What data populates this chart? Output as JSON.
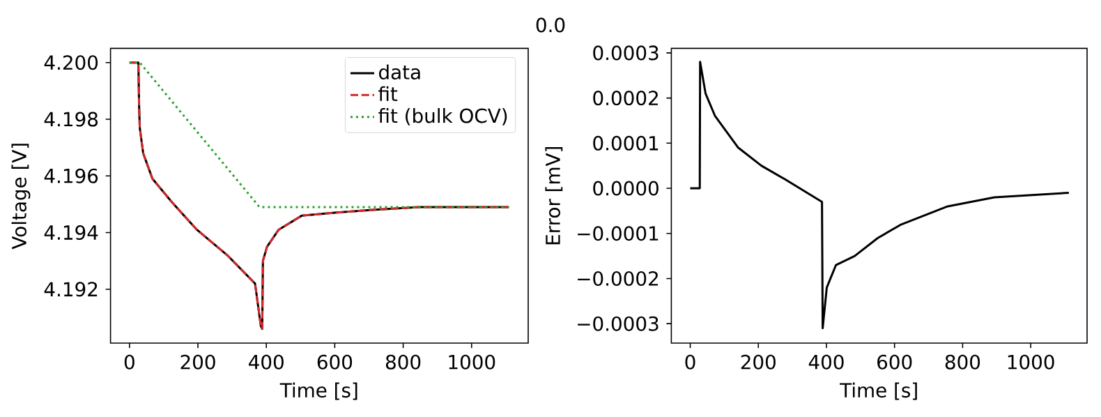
{
  "chart_data": [
    {
      "type": "line",
      "title": "0.0",
      "xlabel": "Time [s]",
      "ylabel": "Voltage [V]",
      "xlim": [
        -55.5,
        1165.5
      ],
      "ylim": [
        4.1901,
        4.2005
      ],
      "xticks": [
        0,
        200,
        400,
        600,
        800,
        1000
      ],
      "yticks": [
        {
          "value": 4.192,
          "label": "4.192"
        },
        {
          "value": 4.194,
          "label": "4.194"
        },
        {
          "value": 4.196,
          "label": "4.196"
        },
        {
          "value": 4.198,
          "label": "4.198"
        },
        {
          "value": 4.2,
          "label": "4.200"
        }
      ],
      "legend": "top right",
      "grid": false,
      "marker": "none",
      "series": [
        {
          "name": "data",
          "color": "#000000",
          "line_style": "solid",
          "x": [
            0,
            26,
            28,
            30,
            40,
            67,
            122,
            197,
            286,
            367,
            384,
            388,
            390,
            402,
            436,
            504,
            600,
            709,
            846,
            1109
          ],
          "values": [
            4.2,
            4.2,
            4.1985,
            4.1977,
            4.1968,
            4.1959,
            4.1951,
            4.1941,
            4.1932,
            4.1922,
            4.1907,
            4.1906,
            4.193,
            4.1935,
            4.1941,
            4.1946,
            4.1947,
            4.1948,
            4.1949,
            4.1949
          ]
        },
        {
          "name": "fit",
          "color": "#d62728",
          "line_style": "dashed",
          "x": [
            0,
            26,
            28,
            30,
            40,
            67,
            122,
            197,
            286,
            367,
            384,
            388,
            390,
            402,
            436,
            504,
            600,
            709,
            846,
            1109
          ],
          "values": [
            4.2,
            4.2,
            4.1985,
            4.1977,
            4.1968,
            4.1959,
            4.1951,
            4.1941,
            4.1932,
            4.1922,
            4.1907,
            4.1906,
            4.193,
            4.1935,
            4.1941,
            4.1946,
            4.1947,
            4.1948,
            4.1949,
            4.1949
          ]
        },
        {
          "name": "fit (bulk OCV)",
          "color": "#2ca02c",
          "line_style": "dotted",
          "x": [
            0,
            30,
            380,
            1109
          ],
          "values": [
            4.2,
            4.2,
            4.1949,
            4.1949
          ]
        }
      ]
    },
    {
      "type": "line",
      "xlabel": "Time [s]",
      "ylabel": "Error [mV]",
      "xlim": [
        -55.5,
        1165.5
      ],
      "ylim": [
        -0.000343,
        0.00031
      ],
      "xticks": [
        0,
        200,
        400,
        600,
        800,
        1000
      ],
      "yticks": [
        {
          "value": -0.0003,
          "label": "−0.0003"
        },
        {
          "value": -0.0002,
          "label": "−0.0002"
        },
        {
          "value": -0.0001,
          "label": "−0.0001"
        },
        {
          "value": 0,
          "label": "0.0000"
        },
        {
          "value": 0.0001,
          "label": "0.0001"
        },
        {
          "value": 0.0002,
          "label": "0.0002"
        },
        {
          "value": 0.0003,
          "label": "0.0003"
        }
      ],
      "legend": false,
      "grid": false,
      "marker": "none",
      "series": [
        {
          "color": "#000000",
          "line_style": "solid",
          "x": [
            0,
            28,
            29,
            45,
            73,
            141,
            209,
            278,
            387,
            389,
            401,
            428,
            483,
            551,
            620,
            756,
            893,
            1112
          ],
          "values": [
            0,
            0,
            0.00028,
            0.00021,
            0.00016,
            9e-05,
            5e-05,
            2e-05,
            -3e-05,
            -0.00031,
            -0.00022,
            -0.00017,
            -0.00015,
            -0.00011,
            -8e-05,
            -4e-05,
            -2e-05,
            -1e-05
          ]
        }
      ]
    }
  ]
}
